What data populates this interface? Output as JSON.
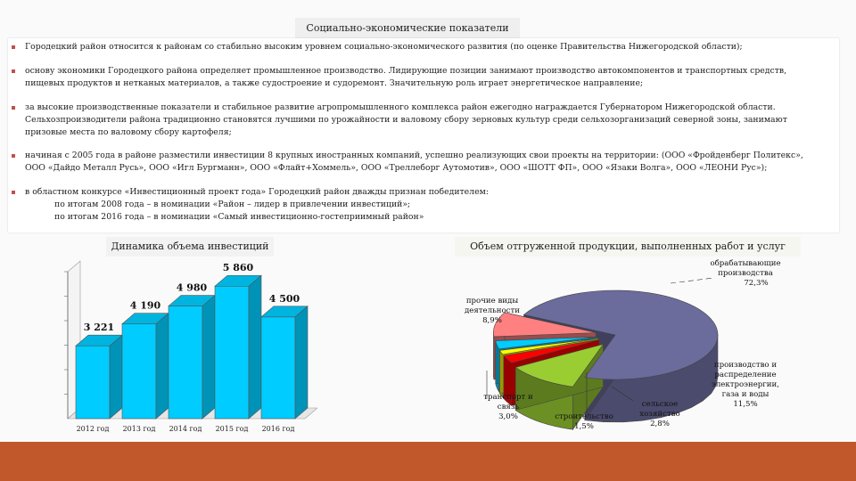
{
  "header": {
    "title": "Социально-экономические показатели"
  },
  "bullets": [
    {
      "lines": [
        "Городецкий район относится к районам со стабильно высоким уровнем социально-экономического развития (по оценке Правительства Нижегородской области);"
      ]
    },
    {
      "lines": [
        "основу экономики Городецкого района определяет промышленное производство. Лидирующие позиции занимают производство автокомпонентов и транспортных средств,",
        "пищевых продуктов и нетканых материалов, а также судостроение и судоремонт. Значительную роль играет энергетическое направление;"
      ]
    },
    {
      "lines": [
        "за высокие производственные показатели и стабильное развитие агропромышленного комплекса район ежегодно награждается Губернатором Нижегородской области.",
        "Сельхозпроизводители района традиционно становятся лучшими по урожайности и валовому сбору зерновых культур среди сельхозорганизаций северной зоны, занимают",
        "призовые места по валовому сбору картофеля;"
      ]
    },
    {
      "lines": [
        "начиная с 2005 года в районе разместили инвестиции 8 крупных иностранных компаний, успешно реализующих свои проекты на территории: (ООО «Фройденберг Политекс»,",
        "ООО «Дайдо Металл Русь», ООО «Игл Бургманн», ООО «Флайт+Хоммель», ООО «Треллеборг Аутомотив», ООО «ШОТТ ФП», ООО «Язаки Волга», ООО «ЛЕОНИ Рус»);"
      ]
    },
    {
      "lines": [
        "в областном конкурсе «Инвестиционный проект года» Городецкий район дважды признан победителем:"
      ],
      "sub": [
        "по итогам 2008 года – в номинации «Район – лидер в привлечении инвестиций»;",
        "по итогам 2016 года – в номинации «Самый инвестиционно-гостеприимный район»"
      ]
    }
  ],
  "captions": {
    "left": "Динамика объема инвестиций",
    "right": "Объем отгруженной продукции, выполненных работ и услуг"
  },
  "colors": {
    "bar": "#00ccff",
    "band": "#c0582c",
    "bullet": "#c0504d"
  },
  "chart_data": [
    {
      "type": "bar",
      "categories": [
        "2012 год",
        "2013 год",
        "2014 год",
        "2015 год",
        "2016 год"
      ],
      "values": [
        3221,
        4190,
        4980,
        5860,
        4500
      ],
      "value_labels": [
        "3 221",
        "4 190",
        "4 980",
        "5 860",
        "4 500"
      ],
      "ylim": [
        0,
        6500
      ],
      "grid": false,
      "three_d": true
    },
    {
      "type": "pie",
      "three_d": true,
      "exploded": true,
      "slices": [
        {
          "label": [
            "обрабатывающие",
            "производства"
          ],
          "value": 72.3,
          "value_label": "72,3%",
          "color": "#6b6b9c"
        },
        {
          "label": [
            "производство и",
            "распределение",
            "электроэнергии,",
            "газа и воды"
          ],
          "value": 11.5,
          "value_label": "11,5%",
          "color": "#9acd32"
        },
        {
          "label": [
            "сельское",
            "хозяйство"
          ],
          "value": 2.8,
          "value_label": "2,8%",
          "color": "#ff0000"
        },
        {
          "label": [
            "строительство"
          ],
          "value": 1.5,
          "value_label": "1,5%",
          "color": "#ffff00"
        },
        {
          "label": [
            "транспорт и",
            "связь"
          ],
          "value": 3.0,
          "value_label": "3,0%",
          "color": "#00ccff"
        },
        {
          "label": [
            "прочие виды",
            "деятельности"
          ],
          "value": 8.9,
          "value_label": "8,9%",
          "color": "#ff8080"
        }
      ],
      "legend": "none"
    }
  ]
}
